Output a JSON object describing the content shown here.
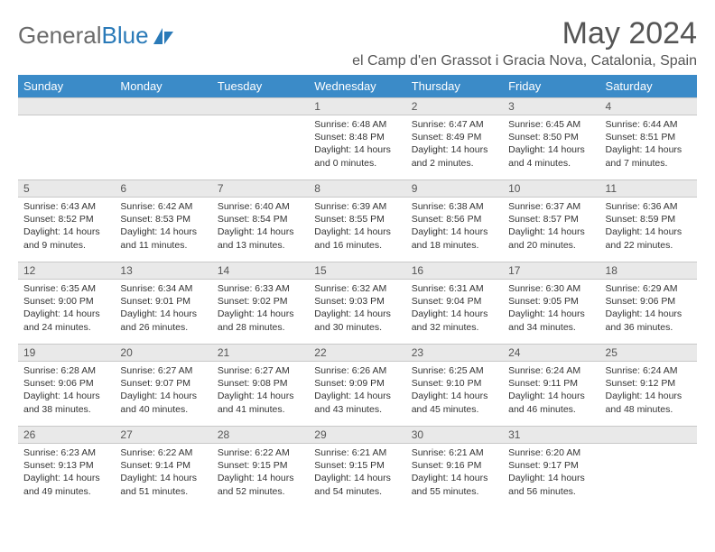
{
  "logo": {
    "text1": "General",
    "text2": "Blue"
  },
  "title": "May 2024",
  "location": "el Camp d'en Grassot i Gracia Nova, Catalonia, Spain",
  "colors": {
    "header_bg": "#3b8bc8",
    "header_fg": "#ffffff",
    "daynum_bg": "#e9e9e9",
    "text": "#333333",
    "logo_gray": "#6b6b6b",
    "logo_blue": "#2a7ab8"
  },
  "weekdays": [
    "Sunday",
    "Monday",
    "Tuesday",
    "Wednesday",
    "Thursday",
    "Friday",
    "Saturday"
  ],
  "weeks": [
    [
      null,
      null,
      null,
      {
        "n": "1",
        "sr": "6:48 AM",
        "ss": "8:48 PM",
        "dl": "14 hours and 0 minutes."
      },
      {
        "n": "2",
        "sr": "6:47 AM",
        "ss": "8:49 PM",
        "dl": "14 hours and 2 minutes."
      },
      {
        "n": "3",
        "sr": "6:45 AM",
        "ss": "8:50 PM",
        "dl": "14 hours and 4 minutes."
      },
      {
        "n": "4",
        "sr": "6:44 AM",
        "ss": "8:51 PM",
        "dl": "14 hours and 7 minutes."
      }
    ],
    [
      {
        "n": "5",
        "sr": "6:43 AM",
        "ss": "8:52 PM",
        "dl": "14 hours and 9 minutes."
      },
      {
        "n": "6",
        "sr": "6:42 AM",
        "ss": "8:53 PM",
        "dl": "14 hours and 11 minutes."
      },
      {
        "n": "7",
        "sr": "6:40 AM",
        "ss": "8:54 PM",
        "dl": "14 hours and 13 minutes."
      },
      {
        "n": "8",
        "sr": "6:39 AM",
        "ss": "8:55 PM",
        "dl": "14 hours and 16 minutes."
      },
      {
        "n": "9",
        "sr": "6:38 AM",
        "ss": "8:56 PM",
        "dl": "14 hours and 18 minutes."
      },
      {
        "n": "10",
        "sr": "6:37 AM",
        "ss": "8:57 PM",
        "dl": "14 hours and 20 minutes."
      },
      {
        "n": "11",
        "sr": "6:36 AM",
        "ss": "8:59 PM",
        "dl": "14 hours and 22 minutes."
      }
    ],
    [
      {
        "n": "12",
        "sr": "6:35 AM",
        "ss": "9:00 PM",
        "dl": "14 hours and 24 minutes."
      },
      {
        "n": "13",
        "sr": "6:34 AM",
        "ss": "9:01 PM",
        "dl": "14 hours and 26 minutes."
      },
      {
        "n": "14",
        "sr": "6:33 AM",
        "ss": "9:02 PM",
        "dl": "14 hours and 28 minutes."
      },
      {
        "n": "15",
        "sr": "6:32 AM",
        "ss": "9:03 PM",
        "dl": "14 hours and 30 minutes."
      },
      {
        "n": "16",
        "sr": "6:31 AM",
        "ss": "9:04 PM",
        "dl": "14 hours and 32 minutes."
      },
      {
        "n": "17",
        "sr": "6:30 AM",
        "ss": "9:05 PM",
        "dl": "14 hours and 34 minutes."
      },
      {
        "n": "18",
        "sr": "6:29 AM",
        "ss": "9:06 PM",
        "dl": "14 hours and 36 minutes."
      }
    ],
    [
      {
        "n": "19",
        "sr": "6:28 AM",
        "ss": "9:06 PM",
        "dl": "14 hours and 38 minutes."
      },
      {
        "n": "20",
        "sr": "6:27 AM",
        "ss": "9:07 PM",
        "dl": "14 hours and 40 minutes."
      },
      {
        "n": "21",
        "sr": "6:27 AM",
        "ss": "9:08 PM",
        "dl": "14 hours and 41 minutes."
      },
      {
        "n": "22",
        "sr": "6:26 AM",
        "ss": "9:09 PM",
        "dl": "14 hours and 43 minutes."
      },
      {
        "n": "23",
        "sr": "6:25 AM",
        "ss": "9:10 PM",
        "dl": "14 hours and 45 minutes."
      },
      {
        "n": "24",
        "sr": "6:24 AM",
        "ss": "9:11 PM",
        "dl": "14 hours and 46 minutes."
      },
      {
        "n": "25",
        "sr": "6:24 AM",
        "ss": "9:12 PM",
        "dl": "14 hours and 48 minutes."
      }
    ],
    [
      {
        "n": "26",
        "sr": "6:23 AM",
        "ss": "9:13 PM",
        "dl": "14 hours and 49 minutes."
      },
      {
        "n": "27",
        "sr": "6:22 AM",
        "ss": "9:14 PM",
        "dl": "14 hours and 51 minutes."
      },
      {
        "n": "28",
        "sr": "6:22 AM",
        "ss": "9:15 PM",
        "dl": "14 hours and 52 minutes."
      },
      {
        "n": "29",
        "sr": "6:21 AM",
        "ss": "9:15 PM",
        "dl": "14 hours and 54 minutes."
      },
      {
        "n": "30",
        "sr": "6:21 AM",
        "ss": "9:16 PM",
        "dl": "14 hours and 55 minutes."
      },
      {
        "n": "31",
        "sr": "6:20 AM",
        "ss": "9:17 PM",
        "dl": "14 hours and 56 minutes."
      },
      null
    ]
  ],
  "labels": {
    "sunrise": "Sunrise:",
    "sunset": "Sunset:",
    "daylight": "Daylight:"
  }
}
